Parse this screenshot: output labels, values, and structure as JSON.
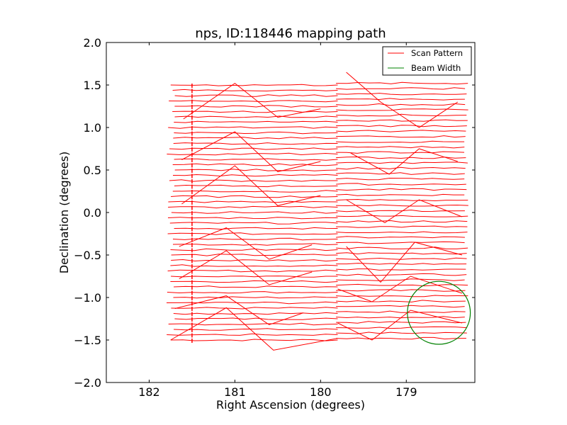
{
  "chart_data": {
    "type": "line",
    "title": "nps, ID:118446 mapping path",
    "xlabel": "Right Ascension (degrees)",
    "ylabel": "Declination (degrees)",
    "xlim": [
      182.5,
      178.2
    ],
    "ylim": [
      -2.0,
      2.0
    ],
    "xticks": [
      182,
      181,
      180,
      179
    ],
    "xtick_labels": [
      "182",
      "181",
      "180",
      "179"
    ],
    "yticks": [
      -2.0,
      -1.5,
      -1.0,
      -0.5,
      0.0,
      0.5,
      1.0,
      1.5,
      2.0
    ],
    "ytick_labels": [
      "−2.0",
      "−1.5",
      "−1.0",
      "−0.5",
      "0.0",
      "0.5",
      "1.0",
      "1.5",
      "2.0"
    ],
    "grid": false,
    "legend_position": "top-right",
    "series": [
      {
        "name": "Scan Pattern",
        "color": "#ff0000",
        "scan": {
          "dec_start": -1.5,
          "dec_end": 1.5,
          "row_step": 0.0625,
          "ra_east": 181.75,
          "ra_west": 178.3,
          "ra_break": 179.8
        },
        "diagonals": [
          {
            "x": [
              181.75,
              181.1,
              180.55,
              179.8
            ],
            "y": [
              -1.5,
              -1.12,
              -1.62,
              -1.48
            ]
          },
          {
            "x": [
              181.7,
              181.1,
              180.6,
              180.2
            ],
            "y": [
              -1.13,
              -0.98,
              -1.32,
              -1.18
            ]
          },
          {
            "x": [
              181.65,
              181.1,
              180.6,
              180.1
            ],
            "y": [
              -0.78,
              -0.45,
              -0.85,
              -0.7
            ]
          },
          {
            "x": [
              181.65,
              181.1,
              180.6,
              180.1
            ],
            "y": [
              -0.4,
              -0.18,
              -0.55,
              -0.38
            ]
          },
          {
            "x": [
              181.62,
              181.0,
              180.5,
              180.0
            ],
            "y": [
              0.1,
              0.55,
              0.08,
              0.2
            ]
          },
          {
            "x": [
              181.62,
              181.0,
              180.5,
              180.0
            ],
            "y": [
              0.62,
              0.95,
              0.48,
              0.6
            ]
          },
          {
            "x": [
              181.6,
              181.0,
              180.5,
              180.0
            ],
            "y": [
              1.1,
              1.52,
              1.12,
              1.22
            ]
          },
          {
            "x": [
              179.8,
              179.4,
              178.95,
              178.35
            ],
            "y": [
              -1.3,
              -1.5,
              -1.15,
              -1.3
            ]
          },
          {
            "x": [
              179.8,
              179.4,
              178.95,
              178.35
            ],
            "y": [
              -0.9,
              -1.05,
              -0.75,
              -0.95
            ]
          },
          {
            "x": [
              179.7,
              179.3,
              178.9,
              178.35
            ],
            "y": [
              -0.4,
              -0.82,
              -0.35,
              -0.5
            ]
          },
          {
            "x": [
              179.7,
              179.25,
              178.85,
              178.35
            ],
            "y": [
              0.15,
              -0.12,
              0.15,
              -0.05
            ]
          },
          {
            "x": [
              179.65,
              179.2,
              178.85,
              178.4
            ],
            "y": [
              0.7,
              0.45,
              0.75,
              0.6
            ]
          },
          {
            "x": [
              179.7,
              179.3,
              178.85,
              178.4
            ],
            "y": [
              1.65,
              1.3,
              1.0,
              1.3
            ]
          }
        ]
      },
      {
        "name": "Beam Width",
        "color": "#008000",
        "center": [
          178.62,
          -1.18
        ],
        "radius_deg": 0.37
      }
    ]
  }
}
